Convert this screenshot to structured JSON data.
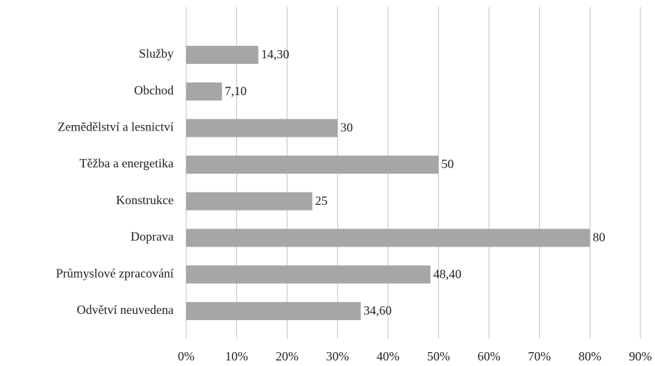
{
  "chart_data": {
    "type": "bar",
    "orientation": "horizontal",
    "categories": [
      "Služby",
      "Obchod",
      "Zemědělství a lesnictví",
      "Těžba a energetika",
      "Konstrukce",
      "Doprava",
      "Průmyslové zpracování",
      "Odvětví neuvedena"
    ],
    "values": [
      14.3,
      7.1,
      30,
      50,
      25,
      80,
      48.4,
      34.6
    ],
    "value_labels": [
      "14,30",
      "7,10",
      "30",
      "50",
      "25",
      "80",
      "48,40",
      "34,60"
    ],
    "color": "#a6a6a6",
    "xlim": [
      0,
      90
    ],
    "xticks": [
      {
        "value": 0,
        "label": "0%"
      },
      {
        "value": 10,
        "label": "10%"
      },
      {
        "value": 20,
        "label": "20%"
      },
      {
        "value": 30,
        "label": "30%"
      },
      {
        "value": 40,
        "label": "40%"
      },
      {
        "value": 50,
        "label": "50%"
      },
      {
        "value": 60,
        "label": "60%"
      },
      {
        "value": 70,
        "label": "70%"
      },
      {
        "value": 80,
        "label": "80%"
      },
      {
        "value": 90,
        "label": "90%"
      }
    ],
    "grid": true
  }
}
